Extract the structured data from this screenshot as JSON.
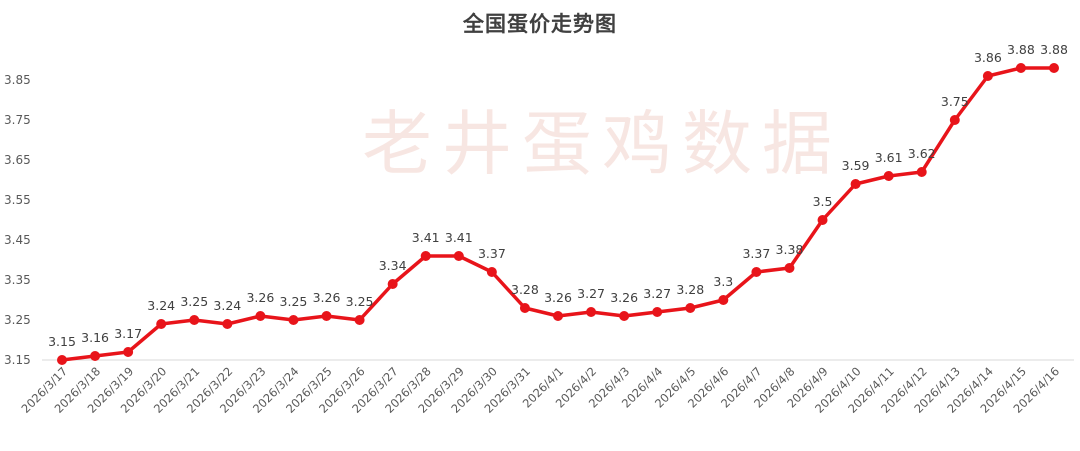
{
  "chart_data": {
    "type": "line",
    "title": "全国蛋价走势图",
    "watermark": "老井蛋鸡数据",
    "xlabel": "",
    "ylabel": "",
    "y_ticks": [
      "3.15",
      "3.25",
      "3.35",
      "3.45",
      "3.55",
      "3.65",
      "3.75",
      "3.85"
    ],
    "ylim": [
      3.15,
      3.85
    ],
    "grid": false,
    "legend": "none",
    "color": "#e8141a",
    "categories": [
      "2026/3/17",
      "2026/3/18",
      "2026/3/19",
      "2026/3/20",
      "2026/3/21",
      "2026/3/22",
      "2026/3/23",
      "2026/3/24",
      "2026/3/25",
      "2026/3/26",
      "2026/3/27",
      "2026/3/28",
      "2026/3/29",
      "2026/3/30",
      "2026/3/31",
      "2026/4/1",
      "2026/4/2",
      "2026/4/3",
      "2026/4/4",
      "2026/4/5",
      "2026/4/6",
      "2026/4/7",
      "2026/4/8",
      "2026/4/9",
      "2026/4/10",
      "2026/4/11",
      "2026/4/12",
      "2026/4/13",
      "2026/4/14",
      "2026/4/15",
      "2026/4/16"
    ],
    "values": [
      3.15,
      3.16,
      3.17,
      3.24,
      3.25,
      3.24,
      3.26,
      3.25,
      3.26,
      3.25,
      3.34,
      3.41,
      3.41,
      3.37,
      3.28,
      3.26,
      3.27,
      3.26,
      3.27,
      3.28,
      3.3,
      3.37,
      3.38,
      3.5,
      3.59,
      3.61,
      3.62,
      3.75,
      3.86,
      3.88,
      3.88
    ],
    "data_labels": [
      "3.15",
      "3.16",
      "3.17",
      "3.24",
      "3.25",
      "3.24",
      "3.26",
      "3.25",
      "3.26",
      "3.25",
      "3.34",
      "3.41",
      "3.41",
      "3.37",
      "3.28",
      "3.26",
      "3.27",
      "3.26",
      "3.27",
      "3.28",
      "3.3",
      "3.37",
      "3.38",
      "3.5",
      "3.59",
      "3.61",
      "3.62",
      "3.75",
      "3.86",
      "3.88",
      "3.88"
    ]
  }
}
